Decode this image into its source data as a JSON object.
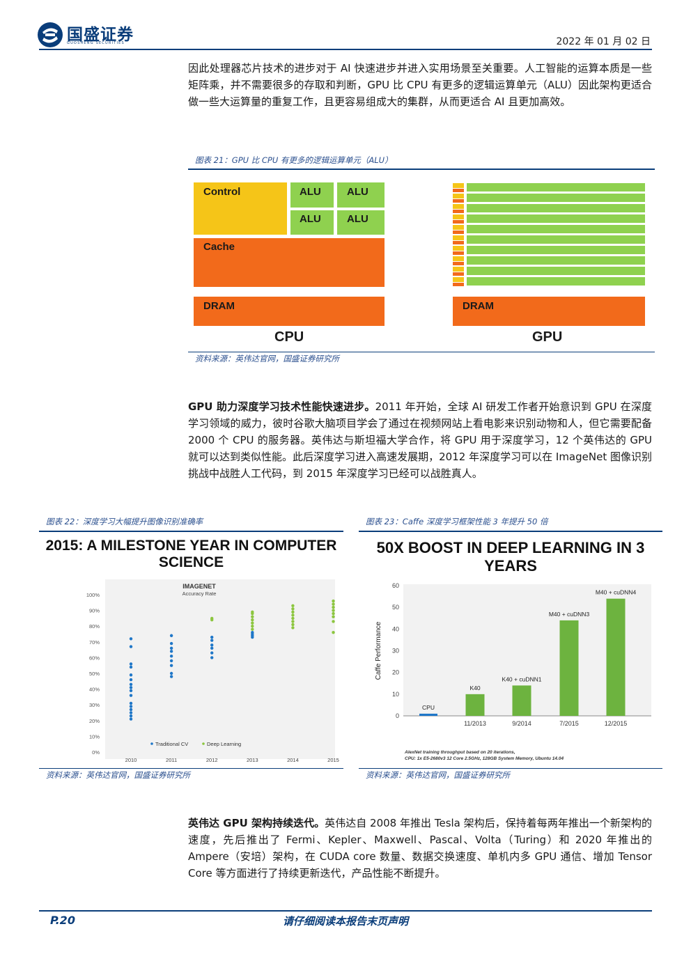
{
  "header": {
    "brand": "国盛证券",
    "brand_sub": "GUOSHENG SECURITIES",
    "date": "2022 年 01 月 02 日"
  },
  "paragraph1": "因此处理器芯片技术的进步对于 AI 快速进步并进入实用场景至关重要。人工智能的运算本质是一些矩阵乘，并不需要很多的存取和判断，GPU 比 CPU 有更多的逻辑运算单元（ALU）因此架构更适合做一些大运算量的重复工作，且更容易组成大的集群，从而更适合 AI 且更加高效。",
  "figure21": {
    "title": "图表 21：GPU 比 CPU 有更多的逻辑运算单元（ALU）",
    "cpu": {
      "control": "Control",
      "alu": [
        "ALU",
        "ALU",
        "ALU",
        "ALU"
      ],
      "cache": "Cache",
      "dram": "DRAM",
      "label": "CPU"
    },
    "gpu": {
      "dram": "DRAM",
      "label": "GPU",
      "rows": 10
    },
    "colors": {
      "control": "#f5c518",
      "alu": "#8fd14f",
      "cache": "#f26a1b",
      "dram": "#f26a1b"
    },
    "source": "资料来源：英伟达官网，国盛证券研究所"
  },
  "paragraph2": {
    "lead": "GPU 助力深度学习技术性能快速进步。",
    "body": "2011 年开始，全球 AI 研发工作者开始意识到 GPU 在深度学习领域的威力，彼时谷歌大脑项目学会了通过在视频网站上看电影来识别动物和人，但它需要配备 2000 个 CPU 的服务器。英伟达与斯坦福大学合作，将 GPU 用于深度学习，12 个英伟达的 GPU 就可以达到类似性能。此后深度学习进入高速发展期，2012 年深度学习可以在 ImageNet 图像识别挑战中战胜人工代码，到 2015 年深度学习已经可以战胜真人。"
  },
  "figure22": {
    "title": "图表 22：深度学习大幅提升图像识别准确率",
    "source": "资料来源：英伟达官网，国盛证券研究所"
  },
  "figure23": {
    "title": "图表 23：Caffe 深度学习框架性能 3 年提升 50 倍",
    "source": "资料来源：英伟达官网，国盛证券研究所"
  },
  "paragraph3": {
    "lead": "英伟达 GPU 架构持续迭代。",
    "body": "英伟达自 2008 年推出 Tesla 架构后，保持着每两年推出一个新架构的速度，先后推出了 Fermi、Kepler、Maxwell、Pascal、Volta（Turing）和 2020 年推出的 Ampere（安培）架构，在 CUDA core 数量、数据交换速度、单机内多 GPU 通信、增加 Tensor Core 等方面进行了持续更新迭代，产品性能不断提升。"
  },
  "footer": {
    "page": "P.20",
    "disclaimer": "请仔细阅读本报告末页声明"
  },
  "chart_data": [
    {
      "type": "scatter",
      "title": "2015: A MILESTONE YEAR IN COMPUTER SCIENCE",
      "subtitle": "IMAGENET",
      "subtitle2": "Accuracy Rate",
      "categories": [
        "2010",
        "2011",
        "2012",
        "2013",
        "2014",
        "2015"
      ],
      "y_ticks": [
        "0%",
        "10%",
        "20%",
        "30%",
        "40%",
        "50%",
        "60%",
        "70%",
        "80%",
        "90%",
        "100%"
      ],
      "ylim": [
        0,
        100
      ],
      "series": [
        {
          "name": "Traditional CV",
          "color": "#1f77c8",
          "points": [
            [
              "2010",
              72
            ],
            [
              "2010",
              67
            ],
            [
              "2010",
              56
            ],
            [
              "2010",
              54
            ],
            [
              "2010",
              49
            ],
            [
              "2010",
              46
            ],
            [
              "2010",
              43
            ],
            [
              "2010",
              41
            ],
            [
              "2010",
              39
            ],
            [
              "2010",
              36
            ],
            [
              "2010",
              31
            ],
            [
              "2010",
              29
            ],
            [
              "2010",
              27
            ],
            [
              "2010",
              25
            ],
            [
              "2010",
              23
            ],
            [
              "2010",
              21
            ],
            [
              "2011",
              74
            ],
            [
              "2011",
              69
            ],
            [
              "2011",
              66
            ],
            [
              "2011",
              64
            ],
            [
              "2011",
              61
            ],
            [
              "2011",
              58
            ],
            [
              "2011",
              55
            ],
            [
              "2011",
              50
            ],
            [
              "2011",
              48
            ],
            [
              "2012",
              73
            ],
            [
              "2012",
              71
            ],
            [
              "2012",
              68
            ],
            [
              "2012",
              66
            ],
            [
              "2012",
              63
            ],
            [
              "2012",
              60
            ],
            [
              "2013",
              76
            ],
            [
              "2013",
              75
            ],
            [
              "2013",
              74
            ],
            [
              "2013",
              73
            ]
          ]
        },
        {
          "name": "Deep Learning",
          "color": "#8cc63f",
          "points": [
            [
              "2012",
              85
            ],
            [
              "2012",
              84
            ],
            [
              "2013",
              89
            ],
            [
              "2013",
              88
            ],
            [
              "2013",
              86
            ],
            [
              "2013",
              84
            ],
            [
              "2013",
              82
            ],
            [
              "2013",
              80
            ],
            [
              "2013",
              78
            ],
            [
              "2014",
              93
            ],
            [
              "2014",
              91
            ],
            [
              "2014",
              89
            ],
            [
              "2014",
              87
            ],
            [
              "2014",
              85
            ],
            [
              "2014",
              83
            ],
            [
              "2014",
              81
            ],
            [
              "2014",
              79
            ],
            [
              "2015",
              96
            ],
            [
              "2015",
              94
            ],
            [
              "2015",
              92
            ],
            [
              "2015",
              90
            ],
            [
              "2015",
              88
            ],
            [
              "2015",
              86
            ],
            [
              "2015",
              83
            ],
            [
              "2015",
              76
            ]
          ]
        }
      ],
      "legend": "bottom"
    },
    {
      "type": "bar",
      "title": "50X BOOST IN DEEP LEARNING IN 3 YEARS",
      "ylabel": "Caffe Performance",
      "categories": [
        "11/2013",
        "9/2014",
        "7/2015",
        "12/2015"
      ],
      "bars": [
        {
          "label": "CPU",
          "value": 1,
          "color": "#1f77c8",
          "slot": "pre"
        },
        {
          "label": "K40",
          "value": 10,
          "color": "#6db33f",
          "slot": "11/2013"
        },
        {
          "label": "K40 + cuDNN1",
          "value": 14,
          "color": "#6db33f",
          "slot": "9/2014"
        },
        {
          "label": "M40 + cuDNN3",
          "value": 44,
          "color": "#6db33f",
          "slot": "7/2015"
        },
        {
          "label": "M40 + cuDNN4",
          "value": 54,
          "color": "#6db33f",
          "slot": "12/2015"
        }
      ],
      "y_ticks": [
        "0",
        "10",
        "20",
        "30",
        "40",
        "50",
        "60"
      ],
      "ylim": [
        0,
        60
      ],
      "footnote1": "AlexNet training throughput based on 20 iterations,",
      "footnote2": "CPU: 1x E5-2680v3 12 Core 2.5GHz, 128GB System Memory, Ubuntu 14.04"
    }
  ]
}
